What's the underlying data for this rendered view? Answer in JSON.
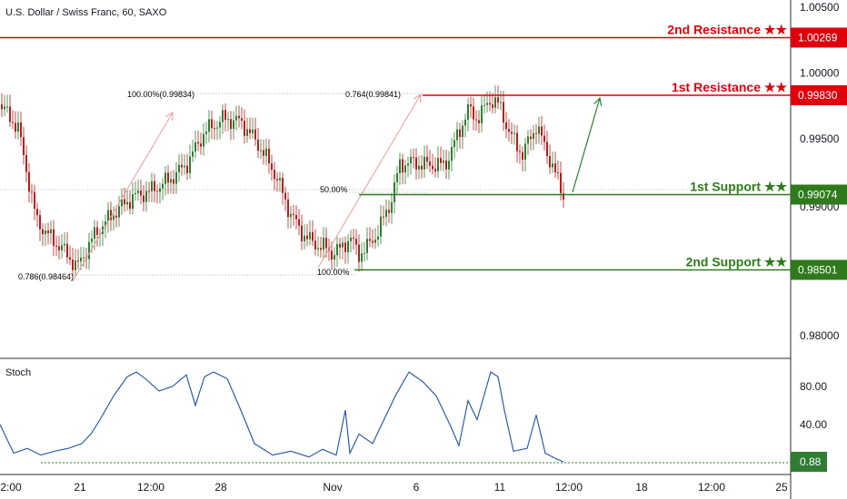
{
  "header": {
    "title": "U.S. Dollar / Swiss Franc, 60, SAXO"
  },
  "colors": {
    "resistance": "#e0000b",
    "support": "#2f7a1c",
    "candle_up": "#2e7d32",
    "candle_down": "#b71c1c",
    "stoch": "#1e4fa8",
    "fib_green": "#66bb6a",
    "fib_red": "#e53935",
    "fib_blue": "#546e7a",
    "arrow_red": "#ef9a9a",
    "arrow_green": "#2e7d32",
    "current": "#888888"
  },
  "price_axis": {
    "ticks": [
      {
        "v": 1.005,
        "label": "1.00500"
      },
      {
        "v": 1.0,
        "label": "1.00000"
      },
      {
        "v": 0.995,
        "label": "0.99500"
      },
      {
        "v": 0.98,
        "label": "0.98000"
      }
    ],
    "partial_label": "0.99000",
    "range": [
      0.977,
      1.0063
    ]
  },
  "time_axis": [
    {
      "label": "2:00"
    },
    {
      "label": "21"
    },
    {
      "label": "12:00"
    },
    {
      "label": "28"
    },
    {
      "label": "Nov"
    },
    {
      "label": "6"
    },
    {
      "label": "11"
    },
    {
      "label": "12:00"
    },
    {
      "label": "18"
    },
    {
      "label": "12:00"
    },
    {
      "label": "25"
    }
  ],
  "levels": [
    {
      "name": "2nd Resistance ★★",
      "value": 1.00269,
      "badge": "1.00269",
      "kind": "resistance"
    },
    {
      "name": "1st Resistance ★★",
      "value": 0.9983,
      "badge": "0.99830",
      "kind": "resistance"
    },
    {
      "name": "1st Support ★★",
      "value": 0.99074,
      "badge": "0.99074",
      "kind": "support"
    },
    {
      "name": "2nd Support ★★",
      "value": 0.98501,
      "badge": "0.98501",
      "kind": "support"
    }
  ],
  "fib_labels": [
    {
      "text": "100.00%(0.99834)",
      "color_key": "fib_green"
    },
    {
      "text": "0.764(0.99841)",
      "color_key": "fib_red"
    },
    {
      "text": "0.786(0.98464)",
      "color_key": "fib_blue"
    },
    {
      "text": "50.00%",
      "color_key": "fib_blue"
    },
    {
      "text": "100.00%",
      "color_key": "fib_red"
    }
  ],
  "stoch": {
    "label": "Stoch",
    "ticks": [
      {
        "v": 80,
        "label": "80.00"
      },
      {
        "v": 40,
        "label": "40.00"
      }
    ],
    "current_label": "0.88",
    "range": [
      0,
      105
    ]
  },
  "chart_data": [
    {
      "type": "line",
      "title": "U.S. Dollar / Swiss Franc, 60, SAXO",
      "description_of_series": "USDCHF hourly close path (approximate, read from chart)",
      "x_index": [
        0,
        20,
        40,
        55,
        70,
        85,
        105,
        125,
        145,
        165,
        185,
        205,
        225,
        245,
        265,
        285,
        305,
        315,
        330,
        345,
        355,
        365,
        375,
        385,
        395,
        405,
        415,
        430,
        440,
        450,
        470,
        490,
        505,
        515,
        525,
        540,
        550,
        560,
        575,
        590,
        600,
        610,
        620
      ],
      "series": [
        {
          "name": "close",
          "values": [
            0.9976,
            0.9958,
            0.9888,
            0.9875,
            0.9865,
            0.9852,
            0.9878,
            0.9893,
            0.9905,
            0.991,
            0.9918,
            0.993,
            0.9955,
            0.9965,
            0.9963,
            0.9945,
            0.992,
            0.99,
            0.988,
            0.987,
            0.9868,
            0.9863,
            0.9866,
            0.9875,
            0.9862,
            0.9868,
            0.9878,
            0.9902,
            0.993,
            0.9932,
            0.993,
            0.993,
            0.9955,
            0.9972,
            0.9965,
            0.998,
            0.9975,
            0.9955,
            0.9938,
            0.996,
            0.9943,
            0.9925,
            0.9907
          ]
        }
      ],
      "ylim": [
        0.977,
        1.0063
      ]
    },
    {
      "type": "line",
      "title": "Stoch",
      "x_index": [
        0,
        15,
        30,
        45,
        60,
        75,
        90,
        100,
        110,
        125,
        140,
        150,
        160,
        175,
        190,
        205,
        215,
        225,
        235,
        250,
        265,
        280,
        300,
        320,
        340,
        355,
        370,
        380,
        385,
        395,
        410,
        420,
        435,
        450,
        465,
        480,
        495,
        505,
        515,
        525,
        540,
        548,
        555,
        565,
        580,
        590,
        600,
        610,
        620
      ],
      "series": [
        {
          "name": "%K",
          "values": [
            40,
            10,
            15,
            8,
            12,
            15,
            20,
            30,
            45,
            70,
            90,
            95,
            88,
            75,
            80,
            92,
            60,
            90,
            95,
            88,
            55,
            20,
            8,
            12,
            6,
            14,
            8,
            55,
            10,
            30,
            20,
            40,
            70,
            95,
            85,
            70,
            40,
            18,
            65,
            45,
            95,
            90,
            55,
            12,
            15,
            50,
            10,
            5,
            1
          ]
        }
      ],
      "ylim": [
        0,
        105
      ],
      "current_value": 0.88
    }
  ]
}
